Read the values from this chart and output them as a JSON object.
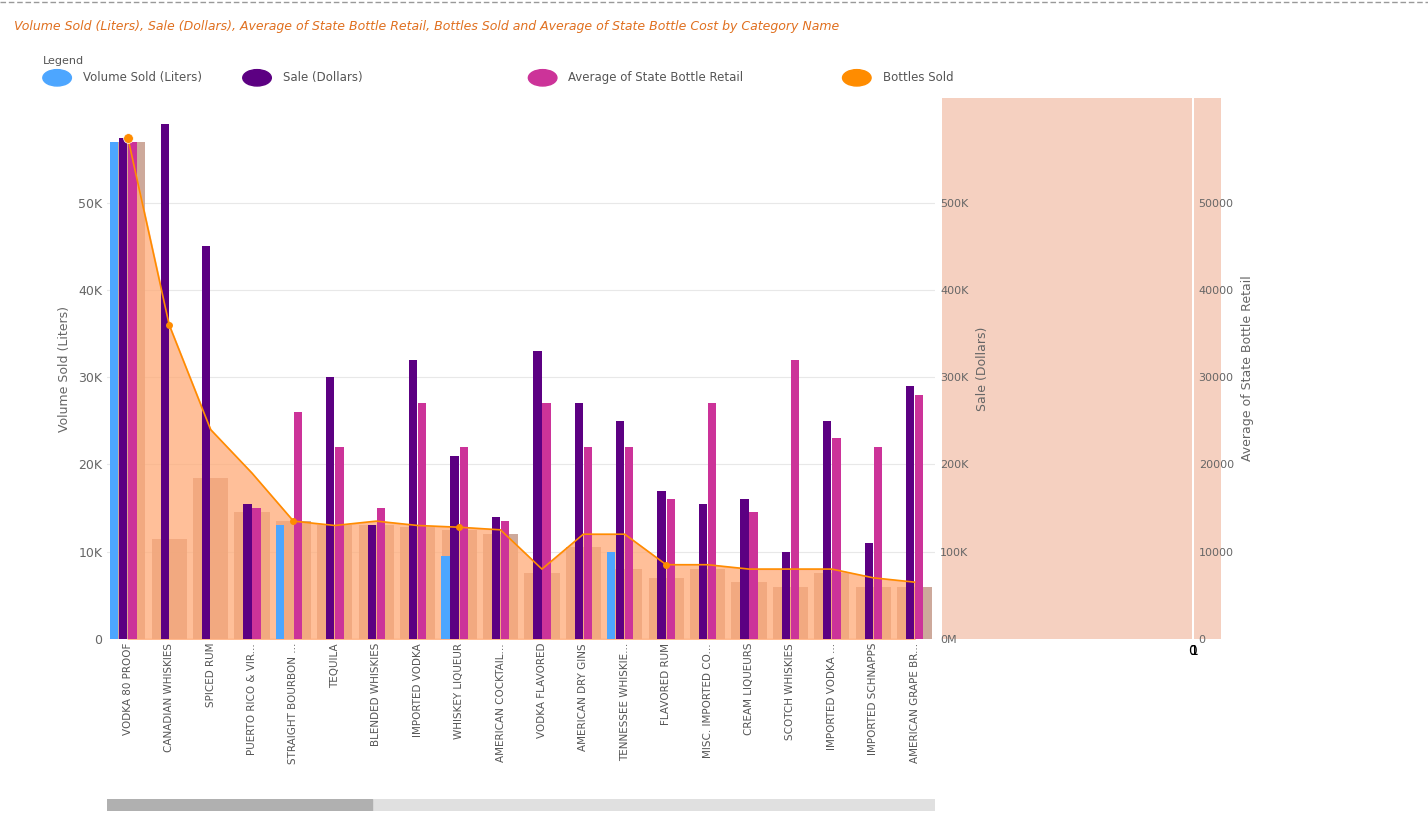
{
  "title": "Volume Sold (Liters), Sale (Dollars), Average of State Bottle Retail, Bottles Sold and Average of State Bottle Cost by Category Name",
  "title_color": "#e07020",
  "background_color": "#ffffff",
  "plot_bg_color": "#ffffff",
  "categories": [
    "VODKA 80 PROOF",
    "CANADIAN WHISKIES",
    "SPICED RUM",
    "PUERTO RICO & VIR...",
    "STRAIGHT BOURBON ...",
    "TEQUILA",
    "BLENDED WHISKIES",
    "IMPORTED VODKA",
    "WHISKEY LIQUEUR",
    "AMERICAN COCKTAIL...",
    "VODKA FLAVORED",
    "AMERICAN DRY GINS",
    "TENNESSEE WHISKIE...",
    "FLAVORED RUM",
    "MISC. IMPORTED CO...",
    "CREAM LIQUEURS",
    "SCOTCH WHISKIES",
    "IMPORTED VODKA ...",
    "IMPORTED SCHNAPPS",
    "AMERICAN GRAPE BR..."
  ],
  "volume_sold_display": [
    57000,
    0,
    0,
    0,
    13000,
    0,
    0,
    0,
    9500,
    0,
    0,
    0,
    10000,
    0,
    0,
    0,
    0,
    0,
    0,
    0
  ],
  "sale_display": [
    57500,
    59000,
    45000,
    15500,
    0,
    30000,
    13000,
    32000,
    21000,
    14000,
    33000,
    27000,
    25000,
    17000,
    15500,
    16000,
    10000,
    25000,
    11000,
    29000
  ],
  "retail_display": [
    57000,
    0,
    0,
    15000,
    26000,
    22000,
    15000,
    27000,
    22000,
    13500,
    27000,
    22000,
    22000,
    16000,
    27000,
    14500,
    32000,
    23000,
    22000,
    28000
  ],
  "bottles_sold": [
    57500,
    36000,
    24000,
    19000,
    13500,
    13000,
    13500,
    13000,
    12800,
    12500,
    8000,
    12000,
    12000,
    8500,
    8500,
    8000,
    8000,
    8000,
    7000,
    6500
  ],
  "bg_bar": [
    57000,
    11500,
    18500,
    14500,
    13500,
    13000,
    13000,
    12800,
    12500,
    12000,
    7500,
    10500,
    8000,
    7000,
    8000,
    6500,
    6000,
    7500,
    6000,
    6000
  ],
  "legend_labels": [
    "Volume Sold (Liters)",
    "Sale (Dollars)",
    "Average of State Bottle Retail",
    "Bottles Sold"
  ],
  "legend_colors": [
    "#4da6ff",
    "#5c0082",
    "#cc3399",
    "#ff8c00"
  ],
  "bar_color_volume": "#4da6ff",
  "bar_color_sale": "#5c0082",
  "bar_color_retail": "#cc3399",
  "area_color": "#ffaa77",
  "line_color": "#ff8c00",
  "bg_bar_color": "#c8a090",
  "ylabel_left": "Volume Sold (Liters)",
  "ylabel_right1": "Sale (Dollars)",
  "ylabel_right2": "Average of State Bottle Retail",
  "yticks_left": [
    0,
    10000,
    20000,
    30000,
    40000,
    50000
  ],
  "ytick_labels_left": [
    "0",
    "10K",
    "20K",
    "30K",
    "40K",
    "50K"
  ],
  "ylim_left": [
    0,
    62000
  ],
  "right1_ticks": [
    0,
    10000,
    20000,
    30000,
    40000,
    50000,
    60000
  ],
  "right1_labels": [
    "0M",
    "100K",
    "200K",
    "300K",
    "400K",
    "500K",
    ""
  ],
  "right2_ticks": [
    0,
    10000,
    20000,
    30000,
    40000,
    50000
  ],
  "right2_labels": [
    "0",
    "10000",
    "20000",
    "30000",
    "40000",
    "50000"
  ],
  "right_panel_color": "#f5d0c0",
  "grid_color": "#e8e8e8"
}
